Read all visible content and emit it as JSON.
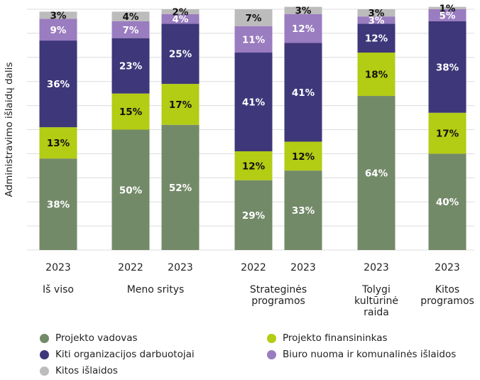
{
  "chart_data": {
    "type": "bar",
    "stacked": true,
    "ylabel": "Administravimo išlaidų dalis",
    "ylim": [
      0,
      100
    ],
    "grid": true,
    "legend_position": "bottom",
    "bars": [
      {
        "year": "2023",
        "group": "Iš viso"
      },
      {
        "year": "2022",
        "group": "Meno sritys"
      },
      {
        "year": "2023",
        "group": "Meno sritys"
      },
      {
        "year": "2022",
        "group": "Strateginės programos"
      },
      {
        "year": "2023",
        "group": "Strateginės programos"
      },
      {
        "year": "2023",
        "group": "Tolygi kultūrinė raida"
      },
      {
        "year": "2023",
        "group": "Kitos programos"
      }
    ],
    "groups": [
      {
        "lines": [
          "Iš viso"
        ]
      },
      {
        "lines": [
          "Meno sritys"
        ]
      },
      {
        "lines": [
          "Strateginės",
          "programos"
        ]
      },
      {
        "lines": [
          "Tolygi",
          "kultūrinė",
          "raida"
        ]
      },
      {
        "lines": [
          "Kitos",
          "programos"
        ]
      }
    ],
    "series": [
      {
        "name": "Projekto vadovas",
        "color": "#738a68",
        "label_color": "#ffffff",
        "values": [
          38,
          50,
          52,
          29,
          33,
          64,
          40
        ]
      },
      {
        "name": "Projekto finansininkas",
        "color": "#b3cc14",
        "label_color": "#111111",
        "values": [
          13,
          15,
          17,
          12,
          12,
          18,
          17
        ]
      },
      {
        "name": "Kiti organizacijos darbuotojai",
        "color": "#3e377a",
        "label_color": "#ffffff",
        "values": [
          36,
          23,
          25,
          41,
          41,
          12,
          38
        ]
      },
      {
        "name": "Biuro nuoma ir komunalinės išlaidos",
        "color": "#9a7cc0",
        "label_color": "#ffffff",
        "values": [
          9,
          7,
          4,
          11,
          12,
          3,
          5
        ]
      },
      {
        "name": "Kitos išlaidos",
        "color": "#bcbcbc",
        "label_color": "#111111",
        "values": [
          3,
          4,
          2,
          7,
          3,
          3,
          1
        ]
      }
    ]
  }
}
